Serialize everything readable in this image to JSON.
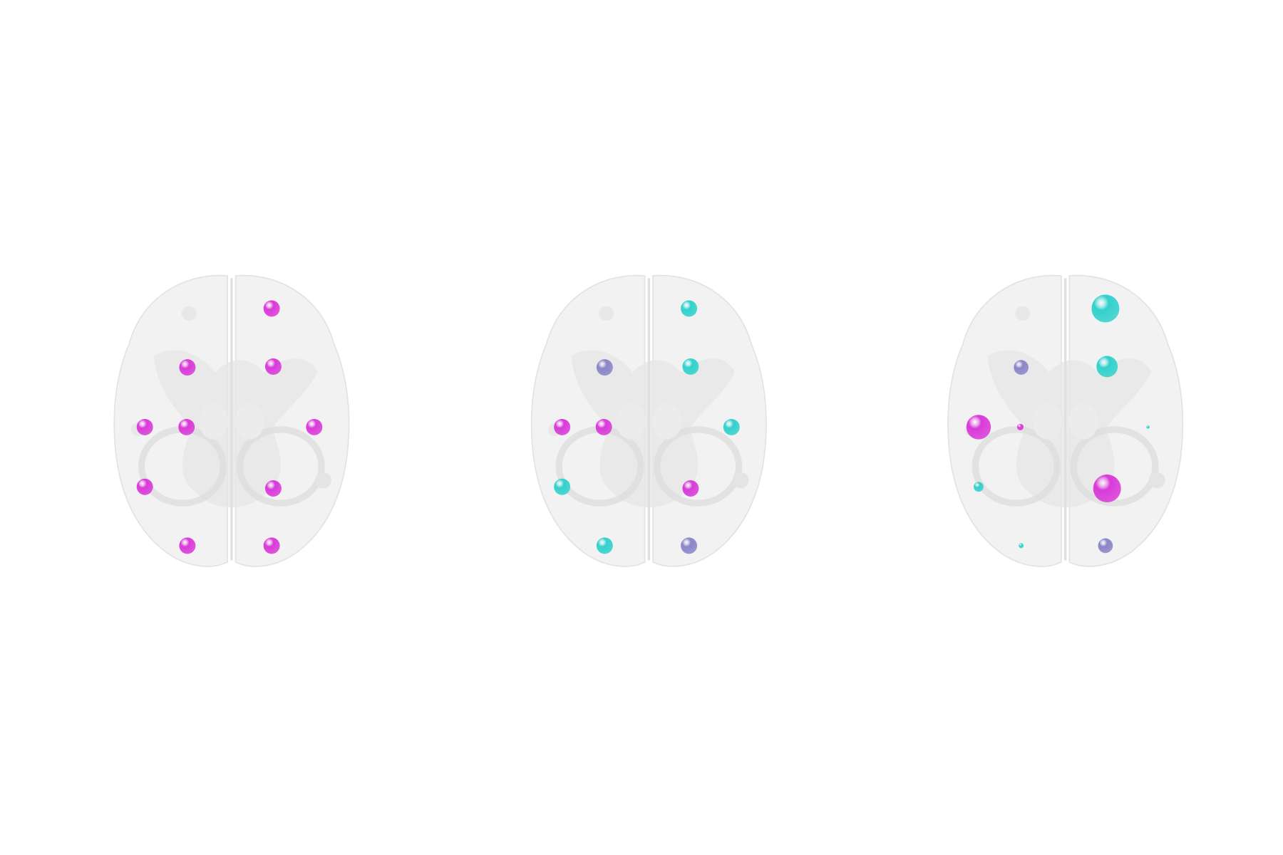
{
  "panels": [
    {
      "nodes": [
        {
          "color": "#d93ad9"
        },
        {
          "color": "#d93ad9"
        },
        {
          "color": "#d93ad9"
        },
        {
          "color": "#d93ad9"
        },
        {
          "color": "#d93ad9"
        },
        {
          "color": "#d93ad9"
        },
        {
          "color": "#d93ad9"
        },
        {
          "color": "#d93ad9"
        },
        {
          "color": "#d93ad9"
        },
        {
          "color": "#d93ad9"
        }
      ]
    },
    {
      "nodes": [
        {
          "color": "#33d1cc"
        },
        {
          "color": "#8a86c8"
        },
        {
          "color": "#33d1cc"
        },
        {
          "color": "#d93ad9"
        },
        {
          "color": "#d93ad9"
        },
        {
          "color": "#33d1cc"
        },
        {
          "color": "#33d1cc"
        },
        {
          "color": "#d93ad9"
        },
        {
          "color": "#33d1cc"
        },
        {
          "color": "#8a86c8"
        }
      ]
    },
    {
      "nodes": [
        {
          "color": "#33d1cc"
        },
        {
          "color": "#8a86c8"
        },
        {
          "color": "#33d1cc"
        },
        {
          "color": "#d93ad9"
        },
        {
          "color": "#d93ad9"
        },
        {
          "color": "#33d1cc"
        },
        {
          "color": "#33d1cc"
        },
        {
          "color": "#d93ad9"
        },
        {
          "color": "#33d1cc"
        },
        {
          "color": "#8a86c8"
        }
      ]
    }
  ]
}
